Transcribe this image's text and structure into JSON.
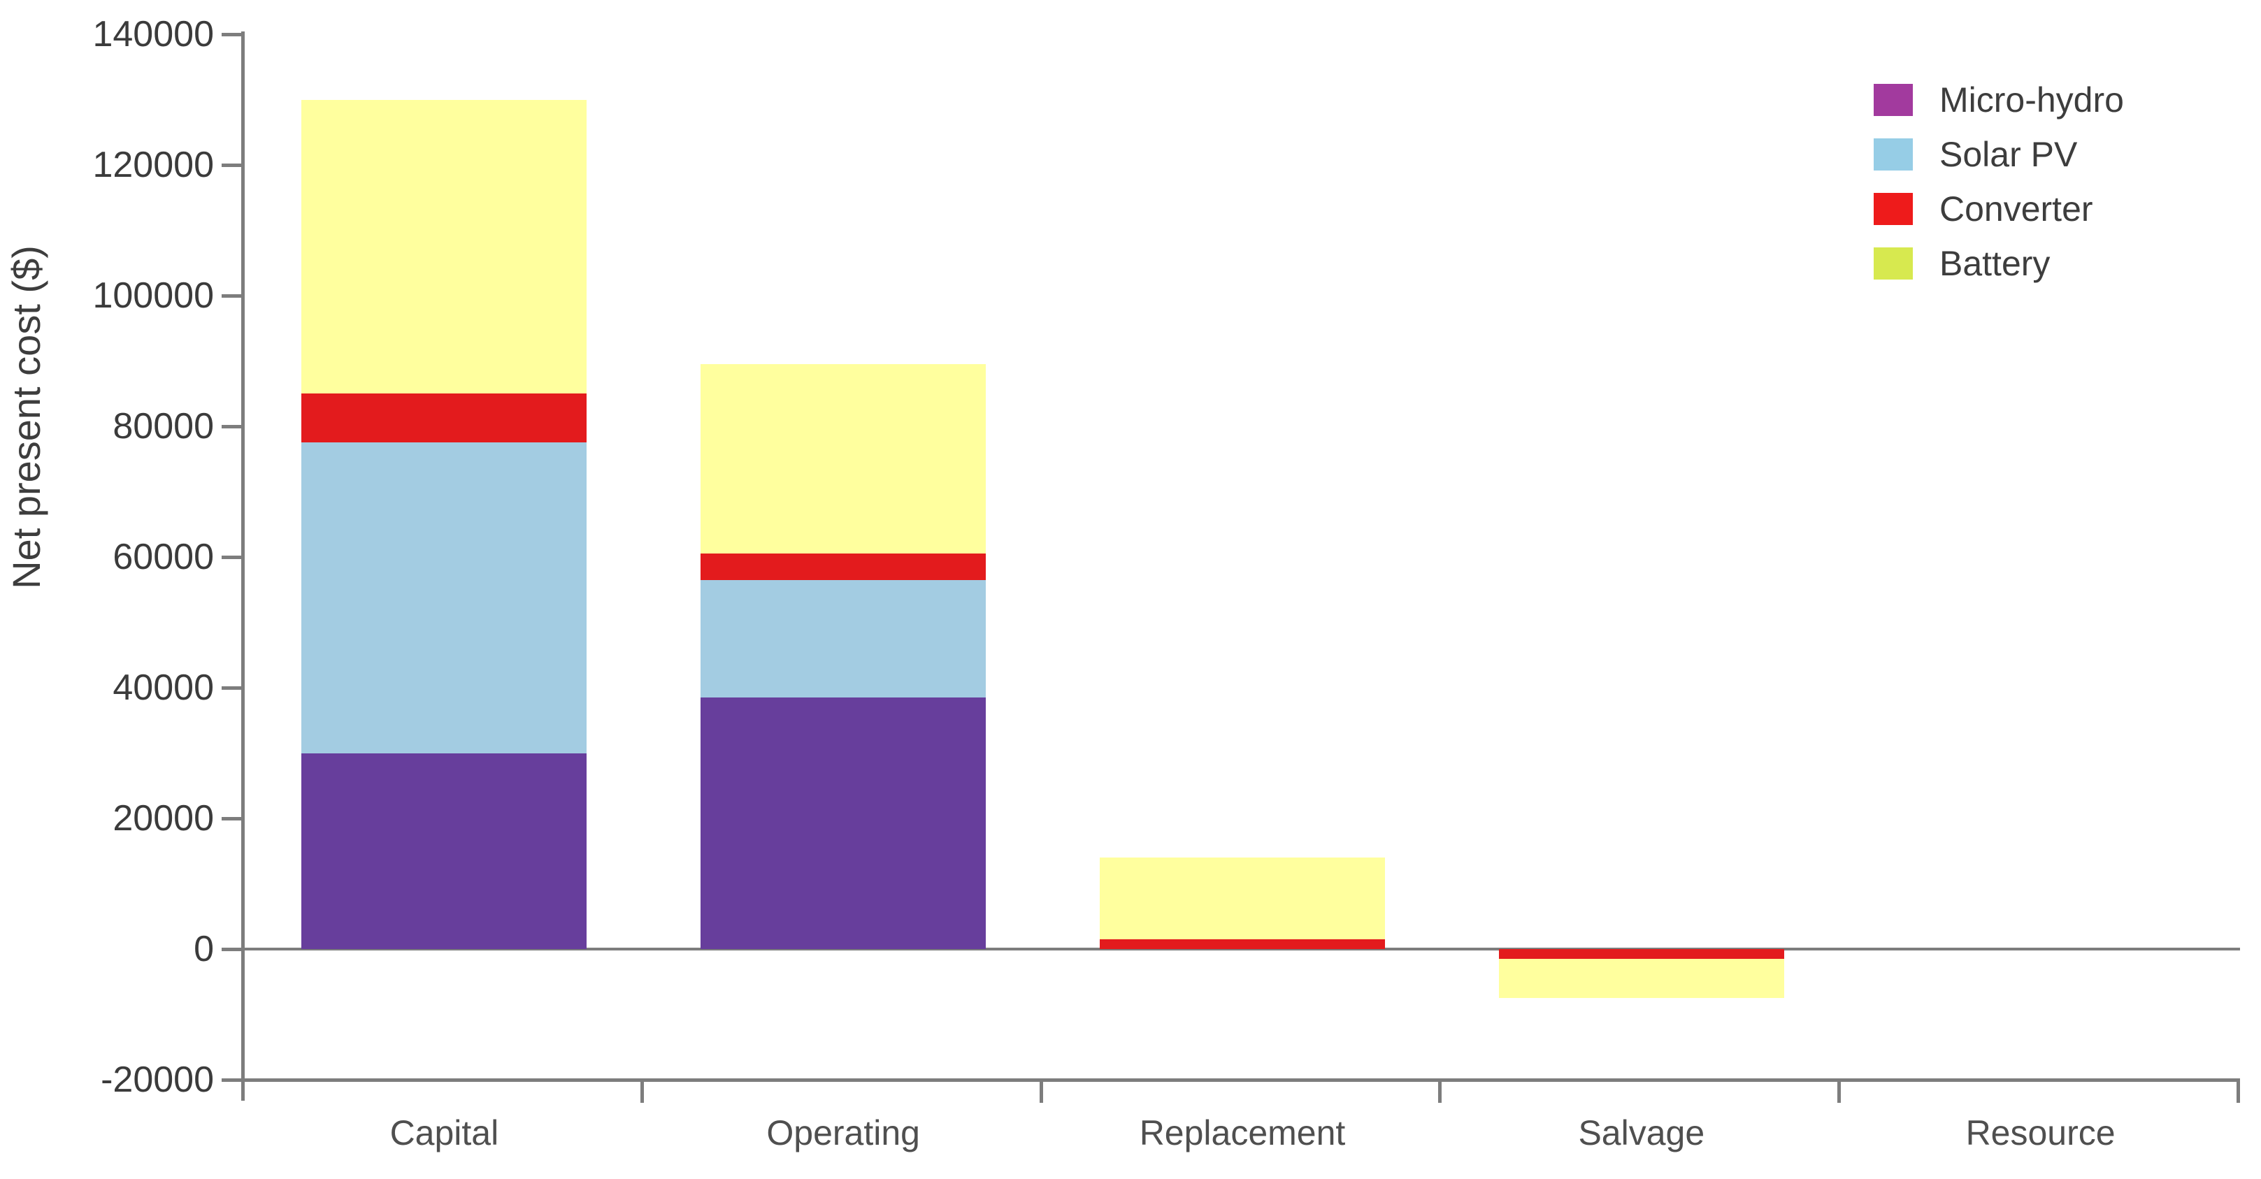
{
  "chart_data": {
    "type": "bar",
    "stacked": true,
    "title": "",
    "xlabel": "",
    "ylabel": "Net present cost ($)",
    "categories": [
      "Capital",
      "Operating",
      "Replacement",
      "Salvage",
      "Resource"
    ],
    "series": [
      {
        "name": "Micro-hydro",
        "bar_color": "#673e9c",
        "legend_color": "#a23a9e",
        "values": [
          30000,
          38500,
          0,
          0,
          0
        ]
      },
      {
        "name": "Solar PV",
        "bar_color": "#a3cce2",
        "legend_color": "#96cde6",
        "values": [
          47500,
          18000,
          0,
          0,
          0
        ]
      },
      {
        "name": "Converter",
        "bar_color": "#e31b1d",
        "legend_color": "#ee1b1b",
        "values": [
          7500,
          4000,
          1500,
          -1500,
          0
        ]
      },
      {
        "name": "Battery",
        "bar_color": "#ffff9e",
        "legend_color": "#d7e94f",
        "values": [
          45000,
          29000,
          12500,
          -6000,
          0
        ]
      }
    ],
    "category_totals": [
      130000,
      89500,
      14000,
      -7500,
      0
    ],
    "ylim": [
      -20000,
      140000
    ],
    "ytick_step": 20000,
    "ytick_labels": [
      "140000",
      "120000",
      "100000",
      "80000",
      "60000",
      "40000",
      "20000",
      "0",
      "-20000"
    ],
    "grid": false,
    "legend_position": "top-right",
    "axis_color": "#7d7d7d",
    "tick_label_color": "#3b3b3b",
    "background_color": "#ffffff"
  }
}
